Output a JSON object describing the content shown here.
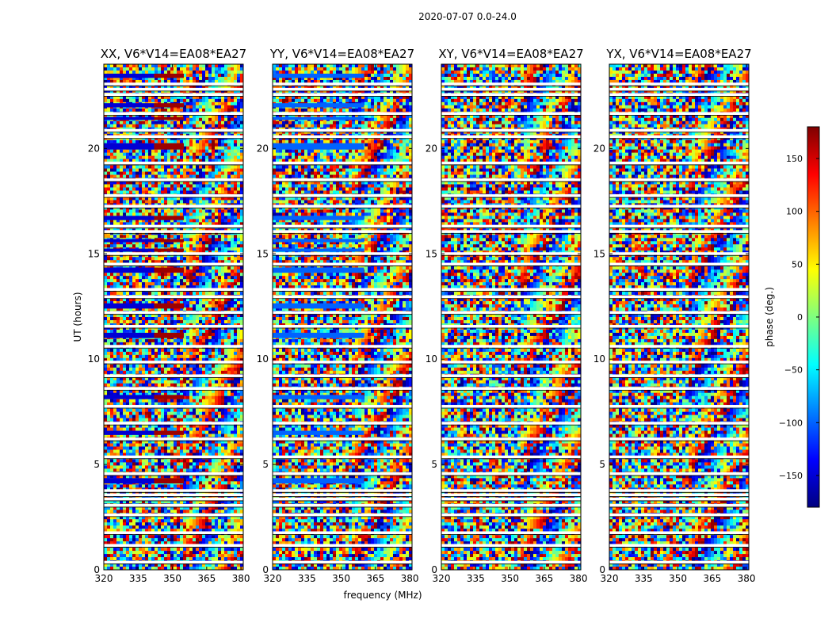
{
  "figure": {
    "suptitle": "2020-07-07 0.0-24.0",
    "xlabel": "frequency (MHz)",
    "ylabel": "UT (hours)"
  },
  "chart_data": {
    "type": "heatmap",
    "title": "2020-07-07 0.0-24.0",
    "xlabel": "frequency (MHz)",
    "ylabel": "UT (hours)",
    "xlim": [
      320,
      381
    ],
    "ylim": [
      0,
      24
    ],
    "xticks": [
      320,
      335,
      350,
      365,
      380
    ],
    "yticks": [
      0,
      5,
      10,
      15,
      20
    ],
    "panels": [
      {
        "id": "xx",
        "title": "XX, V6*V14=EA08*EA27",
        "coherent_phase": -150,
        "coherent_phase_high": 170
      },
      {
        "id": "yy",
        "title": "YY, V6*V14=EA08*EA27",
        "coherent_phase": -100,
        "coherent_phase_high": -100
      },
      {
        "id": "xy",
        "title": "XY, V6*V14=EA08*EA27",
        "coherent_phase": null,
        "coherent_phase_high": null
      },
      {
        "id": "yx",
        "title": "YX, V6*V14=EA08*EA27",
        "coherent_phase": null,
        "coherent_phase_high": null
      }
    ],
    "coherent_rows_ut": [
      [
        23.35,
        23.55
      ],
      [
        21.95,
        22.15
      ],
      [
        21.35,
        21.5
      ],
      [
        19.95,
        20.25
      ],
      [
        16.6,
        16.8
      ],
      [
        15.55,
        15.7
      ],
      [
        15.1,
        15.25
      ],
      [
        14.1,
        14.35
      ],
      [
        12.4,
        12.65
      ],
      [
        11.0,
        11.25
      ],
      [
        8.1,
        8.3
      ],
      [
        6.4,
        6.6
      ],
      [
        4.1,
        4.35
      ]
    ],
    "colorbar": {
      "label": "phase (deg.)",
      "range": [
        -180,
        180
      ],
      "ticks": [
        150,
        100,
        50,
        0,
        -50,
        -100,
        -150
      ],
      "tick_labels": [
        "150",
        "100",
        "50",
        "0",
        "−50",
        "−100",
        "−150"
      ],
      "colormap": "jet",
      "colors": [
        "#00007f",
        "#0000ff",
        "#007fff",
        "#00ffff",
        "#7fff7f",
        "#ffff00",
        "#ff7f00",
        "#ff0000",
        "#7f0000"
      ]
    },
    "flagged_rows_ut": [
      0.35,
      1.15,
      1.75,
      2.6,
      3.05,
      3.35,
      3.55,
      3.75,
      4.55,
      5.35,
      6.2,
      6.95,
      7.75,
      8.6,
      9.2,
      9.85,
      10.6,
      11.55,
      12.2,
      12.95,
      13.3,
      14.5,
      15.0,
      16.05,
      16.3,
      17.25,
      17.75,
      18.5,
      19.3,
      20.55,
      20.85,
      21.65,
      22.55,
      22.8,
      23.05
    ]
  }
}
